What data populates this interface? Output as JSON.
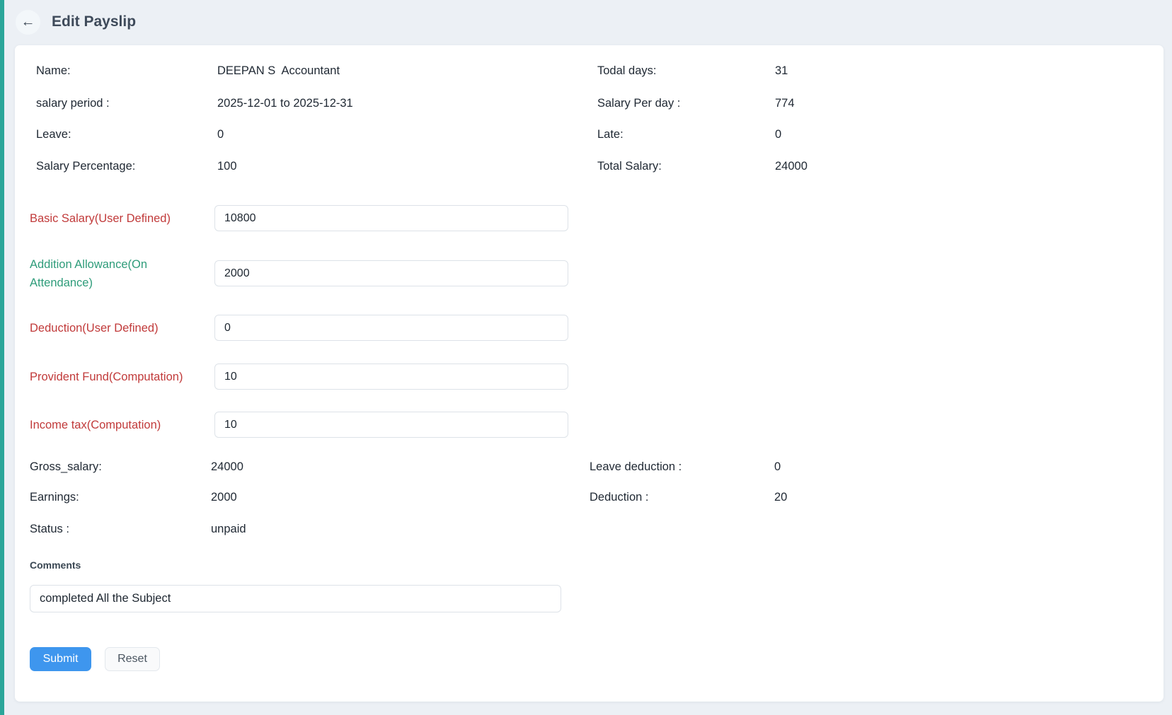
{
  "header": {
    "title": "Edit Payslip",
    "back_icon": "←"
  },
  "summary": {
    "left": [
      {
        "label": "Name:",
        "value": "DEEPAN S  Accountant"
      },
      {
        "label": "salary period :",
        "value": "2025-12-01 to 2025-12-31"
      },
      {
        "label": "Leave:",
        "value": "0"
      },
      {
        "label": "Salary Percentage:",
        "value": "100"
      }
    ],
    "right": [
      {
        "label": "Todal days:",
        "value": "31"
      },
      {
        "label": "Salary Per day :",
        "value": "774"
      },
      {
        "label": "Late:",
        "value": "0"
      },
      {
        "label": "Total Salary:",
        "value": "24000"
      }
    ]
  },
  "fields": [
    {
      "label": "Basic Salary(User Defined)",
      "value": "10800",
      "label_color": "#c13a3a"
    },
    {
      "label": "Addition Allowance(On Attendance)",
      "value": "2000",
      "label_color": "#2e9c7a"
    },
    {
      "label": "Deduction(User Defined)",
      "value": "0",
      "label_color": "#c13a3a"
    },
    {
      "label": "Provident Fund(Computation)",
      "value": "10",
      "label_color": "#c13a3a"
    },
    {
      "label": "Income tax(Computation)",
      "value": "10",
      "label_color": "#c13a3a"
    }
  ],
  "totals": {
    "left": [
      {
        "label": "Gross_salary:",
        "value": "24000"
      },
      {
        "label": "Earnings:",
        "value": "2000"
      },
      {
        "label": "Status :",
        "value": "unpaid"
      }
    ],
    "right": [
      {
        "label": "Leave deduction :",
        "value": "0"
      },
      {
        "label": "Deduction :",
        "value": "20"
      }
    ]
  },
  "comments": {
    "label": "Comments",
    "value": "completed All the Subject"
  },
  "actions": {
    "submit": "Submit",
    "reset": "Reset"
  },
  "colors": {
    "accent_strip": "#2ba69a",
    "primary_button": "#3e96ee",
    "danger_label": "#c13a3a",
    "success_label": "#2e9c7a",
    "page_background": "#ecf0f5"
  }
}
